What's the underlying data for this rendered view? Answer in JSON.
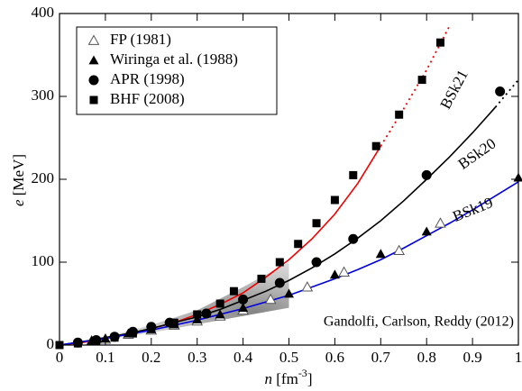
{
  "chart_data": {
    "type": "scatter",
    "x_label": [
      "n",
      "[fm",
      "-3",
      "]"
    ],
    "y_label": [
      "e",
      "[MeV]"
    ],
    "xlim": [
      0,
      1
    ],
    "ylim": [
      0,
      400
    ],
    "xticks": [
      0,
      0.1,
      0.2,
      0.3,
      0.4,
      0.5,
      0.6,
      0.7,
      0.8,
      0.9,
      1
    ],
    "yticks": [
      0,
      100,
      200,
      300,
      400
    ],
    "series": [
      {
        "name": "FP (1981)",
        "marker": "open-triangle",
        "color": "#555555",
        "x": [
          0.07,
          0.1,
          0.15,
          0.2,
          0.25,
          0.3,
          0.35,
          0.4,
          0.46,
          0.54,
          0.62,
          0.74,
          0.83
        ],
        "values": [
          5,
          7,
          13,
          18,
          24,
          29,
          35,
          42,
          55,
          70,
          88,
          114,
          147
        ]
      },
      {
        "name": "Wiringa et al. (1988)",
        "marker": "triangle",
        "color": "#000000",
        "x": [
          0.07,
          0.1,
          0.15,
          0.2,
          0.25,
          0.3,
          0.35,
          0.4,
          0.5,
          0.6,
          0.7,
          0.8,
          1
        ],
        "values": [
          5,
          8,
          14,
          19,
          25,
          31,
          37,
          45,
          62,
          85,
          110,
          137,
          202
        ]
      },
      {
        "name": "APR (1998)",
        "marker": "circle",
        "color": "#000000",
        "x": [
          0.04,
          0.08,
          0.12,
          0.16,
          0.2,
          0.24,
          0.32,
          0.4,
          0.48,
          0.56,
          0.64,
          0.8,
          0.96
        ],
        "values": [
          3,
          6,
          10,
          16,
          22,
          27,
          38,
          55,
          75,
          100,
          128,
          205,
          306
        ]
      },
      {
        "name": "BHF (2008)",
        "marker": "square",
        "color": "#000000",
        "x": [
          0,
          0.04,
          0.08,
          0.12,
          0.16,
          0.2,
          0.25,
          0.3,
          0.35,
          0.38,
          0.44,
          0.48,
          0.52,
          0.56,
          0.6,
          0.64,
          0.69,
          0.74,
          0.79,
          0.83
        ],
        "values": [
          0,
          2,
          5,
          9,
          14,
          20,
          27,
          37,
          50,
          65,
          80,
          100,
          122,
          147,
          175,
          205,
          240,
          278,
          320,
          365
        ]
      }
    ],
    "curves": [
      {
        "name": "BSk21",
        "color": "#ee0000",
        "x": [
          0,
          0.05,
          0.1,
          0.15,
          0.2,
          0.25,
          0.3,
          0.35,
          0.4,
          0.45,
          0.5,
          0.55,
          0.6,
          0.65,
          0.7,
          0.75,
          0.8,
          0.85
        ],
        "values": [
          0,
          3,
          8,
          13,
          20,
          27,
          37,
          49,
          63,
          82,
          103,
          128,
          158,
          195,
          240,
          null,
          null,
          null
        ],
        "dotted_values": [
          null,
          null,
          null,
          null,
          null,
          null,
          null,
          null,
          null,
          null,
          null,
          null,
          null,
          null,
          240,
          285,
          332,
          385
        ]
      },
      {
        "name": "BSk20",
        "color": "#000000",
        "x": [
          0,
          0.05,
          0.1,
          0.15,
          0.2,
          0.25,
          0.3,
          0.35,
          0.4,
          0.45,
          0.5,
          0.55,
          0.6,
          0.65,
          0.7,
          0.75,
          0.8,
          0.85,
          0.9,
          0.95,
          1
        ],
        "values": [
          0,
          4,
          9,
          14,
          20,
          27,
          34,
          43,
          54,
          65,
          78,
          93,
          110,
          129,
          150,
          174,
          200,
          227,
          256,
          287,
          null
        ],
        "dotted_values": [
          null,
          null,
          null,
          null,
          null,
          null,
          null,
          null,
          null,
          null,
          null,
          null,
          null,
          null,
          null,
          null,
          null,
          null,
          null,
          287,
          320
        ]
      },
      {
        "name": "BSk19",
        "color": "#0000dd",
        "x": [
          0,
          0.05,
          0.1,
          0.15,
          0.2,
          0.25,
          0.3,
          0.35,
          0.4,
          0.45,
          0.5,
          0.55,
          0.6,
          0.65,
          0.7,
          0.75,
          0.8,
          0.85,
          0.9,
          0.95,
          1
        ],
        "values": [
          0,
          4,
          8,
          13,
          18,
          24,
          30,
          37,
          44,
          52,
          60,
          70,
          80,
          91,
          103,
          117,
          132,
          147,
          163,
          180,
          197
        ]
      }
    ],
    "band": {
      "label": "Gandolfi, Carlson, Reddy (2012)",
      "color": "#999999",
      "x": [
        0,
        0.1,
        0.2,
        0.3,
        0.4,
        0.5
      ],
      "lower": [
        0,
        6,
        15,
        25,
        35,
        45
      ],
      "upper": [
        0,
        10,
        24,
        42,
        70,
        100
      ]
    }
  }
}
